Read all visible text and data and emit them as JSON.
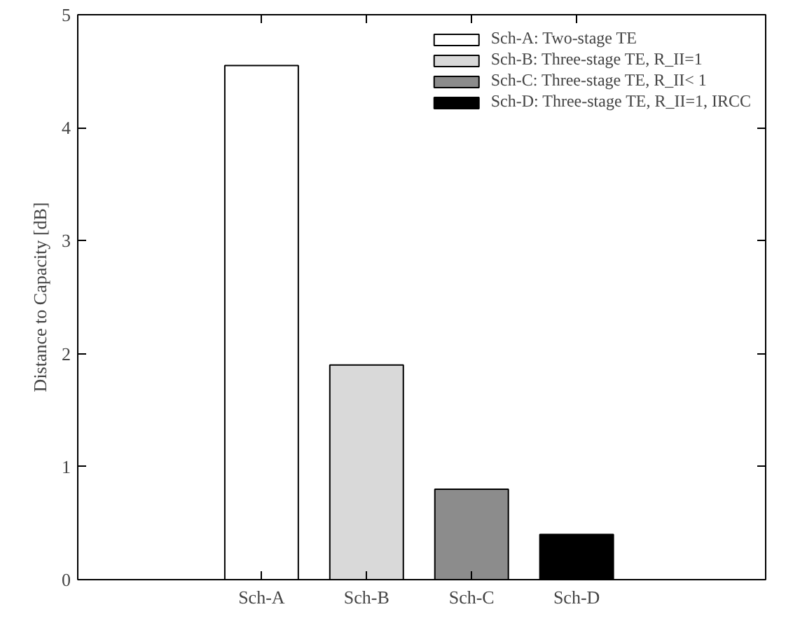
{
  "chart_data": {
    "type": "bar",
    "ylabel": "Distance to Capacity [dB]",
    "categories": [
      "Sch-A",
      "Sch-B",
      "Sch-C",
      "Sch-D"
    ],
    "series": [
      {
        "name": "Sch-A: Two-stage TE",
        "color": "#ffffff",
        "values": [
          4.55,
          null,
          null,
          null
        ]
      },
      {
        "name": "Sch-B: Three-stage TE, R_II=1",
        "color": "#d9d9d9",
        "values": [
          null,
          1.9,
          null,
          null
        ]
      },
      {
        "name": "Sch-C: Three-stage TE, R_II< 1",
        "color": "#8c8c8c",
        "values": [
          null,
          null,
          0.8,
          null
        ]
      },
      {
        "name": "Sch-D: Three-stage TE, R_II=1, IRCC",
        "color": "#000000",
        "values": [
          null,
          null,
          null,
          0.4
        ]
      }
    ],
    "ylim": [
      0,
      5
    ],
    "yticks": [
      0,
      1,
      2,
      3,
      4,
      5
    ],
    "legend": "top right"
  }
}
